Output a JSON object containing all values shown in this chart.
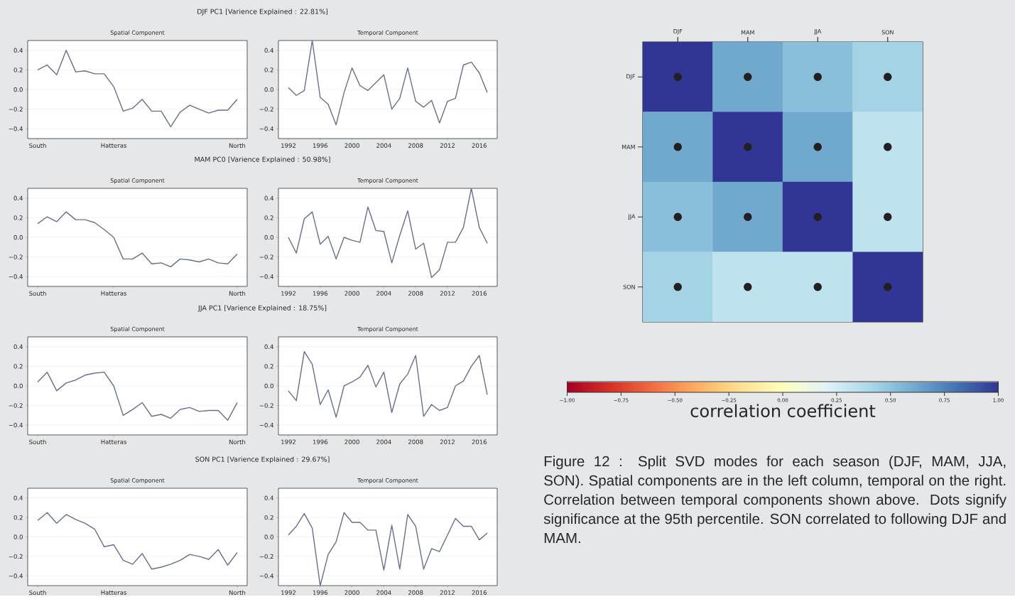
{
  "chart_data": [
    {
      "type": "line",
      "title": "Spatial Component",
      "annotations": [
        "DJF PC1 [Varience Explained : 22.81%]"
      ],
      "categories": [
        "South",
        null,
        null,
        null,
        null,
        null,
        null,
        null,
        "Hatteras",
        null,
        null,
        null,
        null,
        null,
        null,
        null,
        null,
        null,
        null,
        null,
        null,
        "North"
      ],
      "ylim": [
        -0.5,
        0.5
      ],
      "yticks": [
        {
          "value": -0.4,
          "label": "−0.4"
        },
        {
          "value": -0.2,
          "label": "−0.2"
        },
        {
          "value": 0,
          "label": "0.0"
        },
        {
          "value": 0.2,
          "label": "0.2"
        },
        {
          "value": 0.4,
          "label": "0.4"
        }
      ],
      "grid": "y",
      "series": [
        {
          "color": "#66708c",
          "values": [
            0.2,
            0.25,
            0.15,
            0.4,
            0.18,
            0.19,
            0.16,
            0.16,
            0.03,
            -0.22,
            -0.19,
            -0.1,
            -0.22,
            -0.22,
            -0.38,
            -0.23,
            -0.16,
            -0.2,
            -0.24,
            -0.21,
            -0.21,
            -0.1
          ]
        }
      ]
    },
    {
      "type": "line",
      "title": "Temporal Component",
      "x": [
        1992,
        1993,
        1994,
        1995,
        1996,
        1997,
        1998,
        1999,
        2000,
        2001,
        2002,
        2003,
        2004,
        2005,
        2006,
        2007,
        2008,
        2009,
        2010,
        2011,
        2012,
        2013,
        2014,
        2015,
        2016,
        2017
      ],
      "xlim": [
        1990.75,
        2018.25
      ],
      "xticks": [
        1992,
        1996,
        2000,
        2004,
        2008,
        2012,
        2016
      ],
      "ylim": [
        -0.5,
        0.5
      ],
      "yticks": [
        {
          "value": -0.4,
          "label": "−0.4"
        },
        {
          "value": -0.2,
          "label": "−0.2"
        },
        {
          "value": 0,
          "label": "0.0"
        },
        {
          "value": 0.2,
          "label": "0.2"
        },
        {
          "value": 0.4,
          "label": "0.4"
        }
      ],
      "grid": "y",
      "series": [
        {
          "color": "#66708c",
          "values": [
            0.02,
            -0.06,
            -0.01,
            0.5,
            -0.08,
            -0.15,
            -0.36,
            -0.03,
            0.22,
            0.04,
            -0.01,
            0.07,
            0.15,
            -0.2,
            -0.09,
            0.22,
            -0.12,
            -0.18,
            -0.11,
            -0.34,
            -0.12,
            -0.09,
            0.25,
            0.28,
            0.17,
            -0.03
          ]
        }
      ]
    },
    {
      "type": "line",
      "title": "Spatial Component",
      "annotations": [
        "MAM PC0 [Varience Explained : 50.98%]"
      ],
      "categories": [
        "South",
        null,
        null,
        null,
        null,
        null,
        null,
        null,
        "Hatteras",
        null,
        null,
        null,
        null,
        null,
        null,
        null,
        null,
        null,
        null,
        null,
        null,
        "North"
      ],
      "ylim": [
        -0.5,
        0.5
      ],
      "yticks": [
        {
          "value": -0.4,
          "label": "−0.4"
        },
        {
          "value": -0.2,
          "label": "−0.2"
        },
        {
          "value": 0,
          "label": "0.0"
        },
        {
          "value": 0.2,
          "label": "0.2"
        },
        {
          "value": 0.4,
          "label": "0.4"
        }
      ],
      "grid": "y",
      "series": [
        {
          "color": "#66708c",
          "values": [
            0.14,
            0.21,
            0.16,
            0.26,
            0.18,
            0.18,
            0.15,
            0.08,
            0.0,
            -0.22,
            -0.22,
            -0.16,
            -0.27,
            -0.26,
            -0.3,
            -0.22,
            -0.23,
            -0.25,
            -0.22,
            -0.26,
            -0.27,
            -0.17
          ]
        }
      ]
    },
    {
      "type": "line",
      "title": "Temporal Component",
      "x": [
        1992,
        1993,
        1994,
        1995,
        1996,
        1997,
        1998,
        1999,
        2000,
        2001,
        2002,
        2003,
        2004,
        2005,
        2006,
        2007,
        2008,
        2009,
        2010,
        2011,
        2012,
        2013,
        2014,
        2015,
        2016,
        2017
      ],
      "xlim": [
        1990.75,
        2018.25
      ],
      "xticks": [
        1992,
        1996,
        2000,
        2004,
        2008,
        2012,
        2016
      ],
      "ylim": [
        -0.5,
        0.5
      ],
      "yticks": [
        {
          "value": -0.4,
          "label": "−0.4"
        },
        {
          "value": -0.2,
          "label": "−0.2"
        },
        {
          "value": 0,
          "label": "0.0"
        },
        {
          "value": 0.2,
          "label": "0.2"
        },
        {
          "value": 0.4,
          "label": "0.4"
        }
      ],
      "grid": "y",
      "series": [
        {
          "color": "#66708c",
          "values": [
            0.0,
            -0.16,
            0.19,
            0.26,
            -0.07,
            0.01,
            -0.22,
            0.0,
            -0.03,
            -0.05,
            0.31,
            0.07,
            0.06,
            -0.26,
            0.02,
            0.27,
            -0.12,
            -0.06,
            -0.41,
            -0.33,
            -0.05,
            -0.05,
            0.1,
            0.5,
            0.1,
            -0.06
          ]
        }
      ]
    },
    {
      "type": "line",
      "title": "Spatial Component",
      "annotations": [
        "JJA PC1 [Varience Explained : 18.75%]"
      ],
      "categories": [
        "South",
        null,
        null,
        null,
        null,
        null,
        null,
        null,
        "Hatteras",
        null,
        null,
        null,
        null,
        null,
        null,
        null,
        null,
        null,
        null,
        null,
        null,
        "North"
      ],
      "ylim": [
        -0.5,
        0.5
      ],
      "yticks": [
        {
          "value": -0.4,
          "label": "−0.4"
        },
        {
          "value": -0.2,
          "label": "−0.2"
        },
        {
          "value": 0,
          "label": "0.0"
        },
        {
          "value": 0.2,
          "label": "0.2"
        },
        {
          "value": 0.4,
          "label": "0.4"
        }
      ],
      "grid": "y",
      "series": [
        {
          "color": "#66708c",
          "values": [
            0.04,
            0.14,
            -0.05,
            0.03,
            0.06,
            0.11,
            0.13,
            0.14,
            0.0,
            -0.3,
            -0.24,
            -0.17,
            -0.31,
            -0.29,
            -0.33,
            -0.24,
            -0.22,
            -0.26,
            -0.25,
            -0.25,
            -0.35,
            -0.17
          ]
        }
      ]
    },
    {
      "type": "line",
      "title": "Temporal Component",
      "x": [
        1992,
        1993,
        1994,
        1995,
        1996,
        1997,
        1998,
        1999,
        2000,
        2001,
        2002,
        2003,
        2004,
        2005,
        2006,
        2007,
        2008,
        2009,
        2010,
        2011,
        2012,
        2013,
        2014,
        2015,
        2016,
        2017
      ],
      "xlim": [
        1990.75,
        2018.25
      ],
      "xticks": [
        1992,
        1996,
        2000,
        2004,
        2008,
        2012,
        2016
      ],
      "ylim": [
        -0.5,
        0.5
      ],
      "yticks": [
        {
          "value": -0.4,
          "label": "−0.4"
        },
        {
          "value": -0.2,
          "label": "−0.2"
        },
        {
          "value": 0,
          "label": "0.0"
        },
        {
          "value": 0.2,
          "label": "0.2"
        },
        {
          "value": 0.4,
          "label": "0.4"
        }
      ],
      "grid": "y",
      "series": [
        {
          "color": "#66708c",
          "values": [
            -0.05,
            -0.15,
            0.35,
            0.22,
            -0.19,
            -0.04,
            -0.32,
            0.0,
            0.04,
            0.09,
            0.21,
            -0.01,
            0.14,
            -0.27,
            0.02,
            0.12,
            0.31,
            -0.31,
            -0.19,
            -0.25,
            -0.22,
            0.0,
            0.05,
            0.2,
            0.31,
            -0.09
          ]
        }
      ]
    },
    {
      "type": "line",
      "title": "Spatial Component",
      "annotations": [
        "SON PC1 [Varience Explained : 29.67%]"
      ],
      "categories": [
        "South",
        null,
        null,
        null,
        null,
        null,
        null,
        null,
        "Hatteras",
        null,
        null,
        null,
        null,
        null,
        null,
        null,
        null,
        null,
        null,
        null,
        null,
        "North"
      ],
      "ylim": [
        -0.5,
        0.5
      ],
      "yticks": [
        {
          "value": -0.4,
          "label": "−0.4"
        },
        {
          "value": -0.2,
          "label": "−0.2"
        },
        {
          "value": 0,
          "label": "0.0"
        },
        {
          "value": 0.2,
          "label": "0.2"
        },
        {
          "value": 0.4,
          "label": "0.4"
        }
      ],
      "grid": "y",
      "series": [
        {
          "color": "#66708c",
          "values": [
            0.17,
            0.25,
            0.14,
            0.23,
            0.18,
            0.14,
            0.08,
            -0.1,
            -0.08,
            -0.24,
            -0.28,
            -0.17,
            -0.33,
            -0.31,
            -0.28,
            -0.24,
            -0.18,
            -0.2,
            -0.23,
            -0.13,
            -0.29,
            -0.16
          ]
        }
      ]
    },
    {
      "type": "line",
      "title": "Temporal Component",
      "x": [
        1992,
        1993,
        1994,
        1995,
        1996,
        1997,
        1998,
        1999,
        2000,
        2001,
        2002,
        2003,
        2004,
        2005,
        2006,
        2007,
        2008,
        2009,
        2010,
        2011,
        2012,
        2013,
        2014,
        2015,
        2016,
        2017
      ],
      "xlim": [
        1990.75,
        2018.25
      ],
      "xticks": [
        1992,
        1996,
        2000,
        2004,
        2008,
        2012,
        2016
      ],
      "ylim": [
        -0.5,
        0.5
      ],
      "yticks": [
        {
          "value": -0.4,
          "label": "−0.4"
        },
        {
          "value": -0.2,
          "label": "−0.2"
        },
        {
          "value": 0,
          "label": "0.0"
        },
        {
          "value": 0.2,
          "label": "0.2"
        },
        {
          "value": 0.4,
          "label": "0.4"
        }
      ],
      "grid": "y",
      "series": [
        {
          "color": "#66708c",
          "values": [
            0.02,
            0.11,
            0.24,
            0.09,
            -0.5,
            -0.18,
            -0.05,
            0.25,
            0.15,
            0.15,
            0.07,
            0.07,
            -0.34,
            0.12,
            -0.33,
            0.23,
            0.11,
            -0.33,
            -0.12,
            -0.15,
            0.02,
            0.19,
            0.11,
            0.11,
            -0.03,
            0.04
          ]
        }
      ]
    },
    {
      "type": "heatmap",
      "categories": [
        "DJF",
        "MAM",
        "JJA",
        "SON"
      ],
      "y_categories": [
        "DJF",
        "MAM",
        "JJA",
        "SON"
      ],
      "cells": [
        [
          1.0,
          0.62,
          0.52,
          0.43
        ],
        [
          0.62,
          1.0,
          0.62,
          0.33
        ],
        [
          0.52,
          0.62,
          1.0,
          0.33
        ],
        [
          0.43,
          0.33,
          0.33,
          1.0
        ]
      ],
      "cell_labels": [
        [
          "●",
          "●",
          "●",
          "●"
        ],
        [
          "●",
          "●",
          "●",
          "●"
        ],
        [
          "●",
          "●",
          "●",
          "●"
        ],
        [
          "●",
          "●",
          "●",
          "●"
        ]
      ],
      "clim": [
        -1,
        1
      ],
      "cticks": [
        {
          "value": -1,
          "label": "−1.00"
        },
        {
          "value": -0.75,
          "label": "−0.75"
        },
        {
          "value": -0.5,
          "label": "−0.50"
        },
        {
          "value": -0.25,
          "label": "−0.25"
        },
        {
          "value": 0,
          "label": "0.00"
        },
        {
          "value": 0.25,
          "label": "0.25"
        },
        {
          "value": 0.5,
          "label": "0.50"
        },
        {
          "value": 0.75,
          "label": "0.75"
        },
        {
          "value": 1,
          "label": "1.00"
        }
      ],
      "clabel": "correlation coefficient",
      "annotations": [
        "Figure 12 : Split SVD modes for each season (DJF, MAM, JJA, SON). Spatial components are in the left column, temporal on the right. Correlation between temporal components shown above. Dots signify significance at the 95th percentile. SON correlated to following DJF and MAM."
      ]
    }
  ]
}
